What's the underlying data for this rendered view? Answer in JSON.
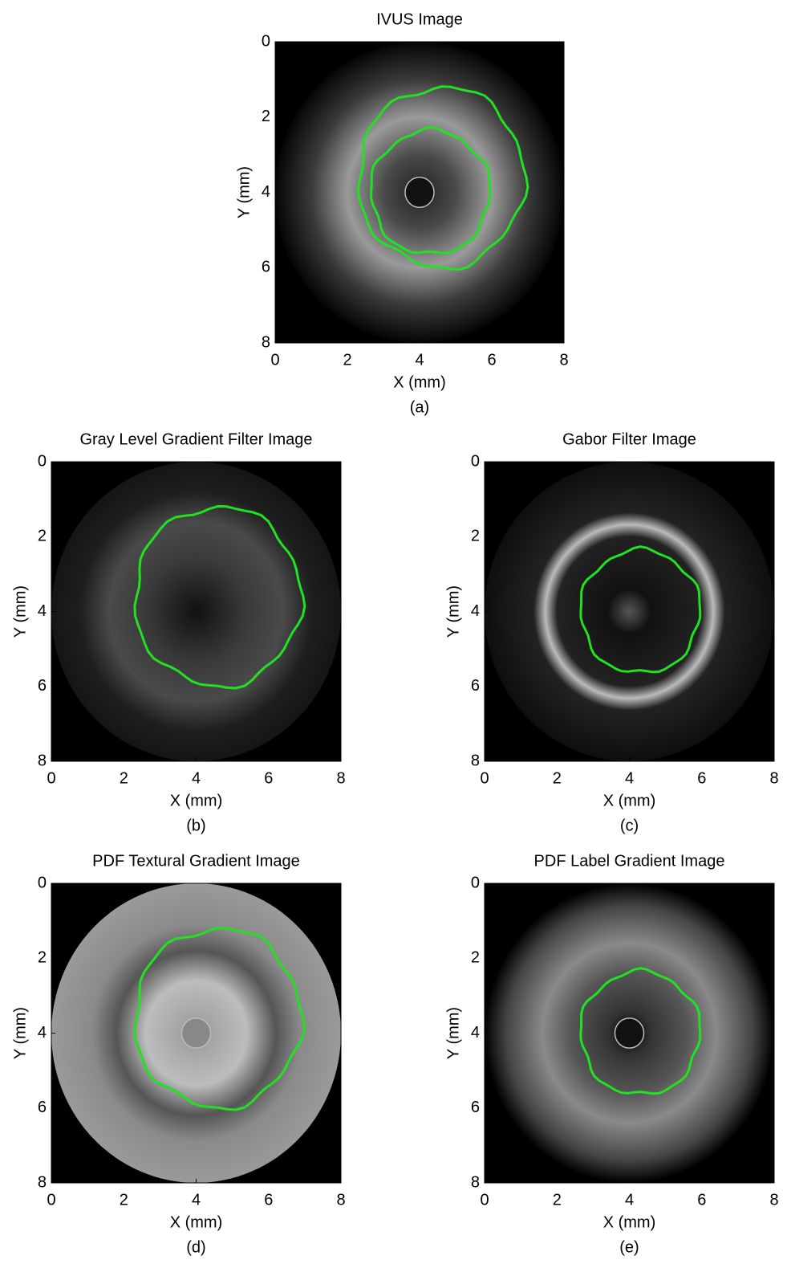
{
  "chart_data": [
    {
      "type": "image",
      "title": "IVUS Image",
      "xlabel": "X (mm)",
      "ylabel": "Y (mm)",
      "caption": "(a)",
      "xlim": [
        0,
        8
      ],
      "ylim": [
        8,
        0
      ],
      "xticks": [
        0,
        2,
        4,
        6,
        8
      ],
      "yticks": [
        0,
        2,
        4,
        6,
        8
      ]
    },
    {
      "type": "image",
      "title": "Gray Level Gradient Filter Image",
      "xlabel": "X (mm)",
      "ylabel": "Y (mm)",
      "caption": "(b)",
      "xlim": [
        0,
        8
      ],
      "ylim": [
        8,
        0
      ],
      "xticks": [
        0,
        2,
        4,
        6,
        8
      ],
      "yticks": [
        0,
        2,
        4,
        6,
        8
      ]
    },
    {
      "type": "image",
      "title": "Gabor Filter Image",
      "xlabel": "X (mm)",
      "ylabel": "Y (mm)",
      "caption": "(c)",
      "xlim": [
        0,
        8
      ],
      "ylim": [
        8,
        0
      ],
      "xticks": [
        0,
        2,
        4,
        6,
        8
      ],
      "yticks": [
        0,
        2,
        4,
        6,
        8
      ]
    },
    {
      "type": "image",
      "title": "PDF Textural Gradient Image",
      "xlabel": "X (mm)",
      "ylabel": "Y (mm)",
      "caption": "(d)",
      "xlim": [
        0,
        8
      ],
      "ylim": [
        8,
        0
      ],
      "xticks": [
        0,
        2,
        4,
        6,
        8
      ],
      "yticks": [
        0,
        2,
        4,
        6,
        8
      ]
    },
    {
      "type": "image",
      "title": "PDF Label Gradient Image",
      "xlabel": "X (mm)",
      "ylabel": "Y (mm)",
      "caption": "(e)",
      "xlim": [
        0,
        8
      ],
      "ylim": [
        8,
        0
      ],
      "xticks": [
        0,
        2,
        4,
        6,
        8
      ],
      "yticks": [
        0,
        2,
        4,
        6,
        8
      ]
    }
  ]
}
